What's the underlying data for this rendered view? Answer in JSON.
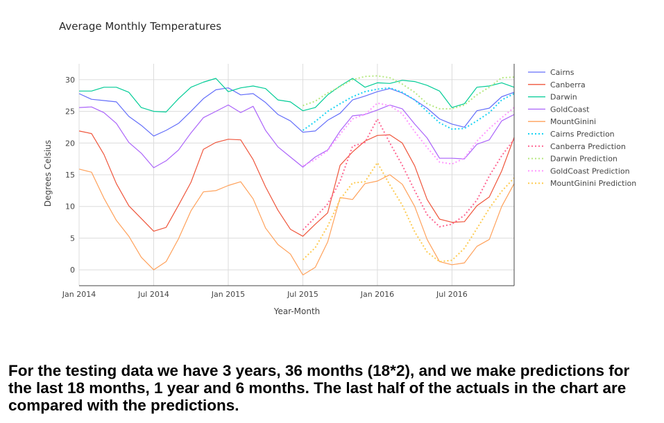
{
  "chart_data": {
    "type": "line",
    "title": "Average Monthly Temperatures",
    "xlabel": "Year-Month",
    "ylabel": "Degrees Celsius",
    "x_start": "2014-01",
    "x_ticks": [
      {
        "label": "Jan 2014",
        "x": "2014-01"
      },
      {
        "label": "Jul 2014",
        "x": "2014-07"
      },
      {
        "label": "Jan 2015",
        "x": "2015-01"
      },
      {
        "label": "Jul 2015",
        "x": "2015-07"
      },
      {
        "label": "Jan 2016",
        "x": "2016-01"
      },
      {
        "label": "Jul 2016",
        "x": "2016-07"
      }
    ],
    "y_ticks": [
      0,
      5,
      10,
      15,
      20,
      25,
      30
    ],
    "xlim": [
      "2014-01",
      "2016-12"
    ],
    "ylim": [
      -2.5,
      32.5
    ],
    "grid": true,
    "legend_position": "right",
    "series": [
      {
        "name": "Cairns",
        "color": "#636efa",
        "dash": "solid",
        "x_start": "2014-01",
        "values": [
          27.8,
          26.9,
          26.7,
          26.5,
          24.2,
          22.8,
          21.1,
          22.0,
          23.1,
          25.0,
          27.0,
          28.4,
          28.7,
          27.6,
          27.8,
          26.4,
          24.5,
          23.5,
          21.7,
          21.9,
          23.6,
          24.7,
          26.8,
          27.4,
          28.1,
          28.6,
          27.9,
          26.8,
          25.5,
          23.8,
          23.0,
          22.5,
          25.1,
          25.5,
          27.3,
          28.0
        ]
      },
      {
        "name": "Canberra",
        "color": "#ef553b",
        "dash": "solid",
        "x_start": "2014-01",
        "values": [
          21.9,
          21.5,
          18.2,
          13.6,
          10.1,
          8.1,
          6.1,
          6.7,
          10.2,
          13.8,
          19.0,
          20.1,
          20.6,
          20.5,
          17.4,
          13.1,
          9.4,
          6.4,
          5.3,
          7.2,
          9.0,
          16.5,
          18.6,
          20.3,
          21.2,
          21.3,
          20.0,
          16.4,
          11.1,
          8.0,
          7.5,
          7.6,
          10.1,
          11.5,
          15.6,
          20.9
        ]
      },
      {
        "name": "Darwin",
        "color": "#00cc96",
        "dash": "solid",
        "x_start": "2014-01",
        "values": [
          28.2,
          28.2,
          28.8,
          28.8,
          28.0,
          25.6,
          25.0,
          24.9,
          27.0,
          28.8,
          29.6,
          30.2,
          28.1,
          28.7,
          29.0,
          28.6,
          26.8,
          26.5,
          25.1,
          25.6,
          27.6,
          29.0,
          30.2,
          28.8,
          29.5,
          29.4,
          29.9,
          29.7,
          29.1,
          28.2,
          25.6,
          26.2,
          28.8,
          29.0,
          29.5,
          28.8
        ]
      },
      {
        "name": "GoldCoast",
        "color": "#ab63fa",
        "dash": "solid",
        "x_start": "2014-01",
        "values": [
          25.6,
          25.7,
          24.8,
          23.1,
          20.1,
          18.4,
          16.1,
          17.2,
          18.9,
          21.6,
          24.0,
          25.0,
          26.0,
          24.8,
          25.8,
          22.0,
          19.4,
          17.8,
          16.2,
          17.8,
          18.9,
          21.9,
          24.3,
          24.5,
          25.2,
          26.0,
          25.4,
          23.0,
          20.8,
          17.6,
          17.6,
          17.5,
          19.8,
          20.5,
          23.5,
          24.5
        ]
      },
      {
        "name": "MountGinini",
        "color": "#ffa15a",
        "dash": "solid",
        "x_start": "2014-01",
        "values": [
          15.9,
          15.4,
          11.3,
          7.8,
          5.3,
          2.0,
          0.0,
          1.3,
          4.9,
          9.3,
          12.3,
          12.5,
          13.3,
          13.9,
          11.2,
          6.6,
          4.0,
          2.5,
          -0.8,
          0.4,
          4.4,
          11.4,
          11.1,
          13.6,
          14.0,
          15.0,
          13.5,
          10.0,
          4.8,
          1.3,
          0.8,
          1.1,
          3.7,
          4.8,
          10.0,
          13.6
        ]
      },
      {
        "name": "Cairns Prediction",
        "color": "#19d3f3",
        "dash": "dot",
        "x_start": "2015-07",
        "values": [
          22.0,
          23.4,
          25.0,
          26.2,
          27.3,
          28.1,
          28.5,
          28.7,
          28.0,
          26.8,
          25.0,
          23.2,
          22.2,
          22.3,
          23.5,
          24.8,
          26.8,
          27.8
        ]
      },
      {
        "name": "Canberra Prediction",
        "color": "#ff6692",
        "dash": "dot",
        "x_start": "2015-07",
        "values": [
          6.3,
          8.3,
          10.4,
          14.0,
          19.5,
          20.1,
          23.8,
          20.0,
          16.5,
          12.5,
          8.7,
          6.8,
          7.2,
          8.6,
          11.0,
          14.8,
          18.0,
          20.6
        ]
      },
      {
        "name": "Darwin Prediction",
        "color": "#b6e880",
        "dash": "dot",
        "x_start": "2015-07",
        "values": [
          25.9,
          26.6,
          27.9,
          28.9,
          30.0,
          30.5,
          30.6,
          30.3,
          29.3,
          28.0,
          26.2,
          25.4,
          25.4,
          26.0,
          27.6,
          28.8,
          30.3,
          30.4
        ]
      },
      {
        "name": "GoldCoast Prediction",
        "color": "#ff97ff",
        "dash": "dot",
        "x_start": "2015-07",
        "values": [
          16.4,
          17.4,
          18.8,
          21.4,
          23.8,
          24.5,
          26.3,
          25.9,
          24.6,
          21.8,
          19.3,
          17.0,
          16.7,
          17.6,
          20.3,
          22.3,
          24.0,
          25.6
        ]
      },
      {
        "name": "MountGinini Prediction",
        "color": "#fecb52",
        "dash": "dot",
        "x_start": "2015-07",
        "values": [
          1.6,
          3.5,
          6.9,
          11.1,
          13.7,
          13.9,
          16.9,
          13.4,
          10.2,
          6.0,
          2.8,
          1.3,
          1.5,
          3.4,
          6.5,
          9.7,
          12.4,
          14.5
        ]
      }
    ]
  },
  "caption": "For the testing data we have 3 years, 36 months (18*2), and we make predictions for the last 18 months, 1 year and 6 months. The last half of the actuals in the chart are compared with the predictions."
}
